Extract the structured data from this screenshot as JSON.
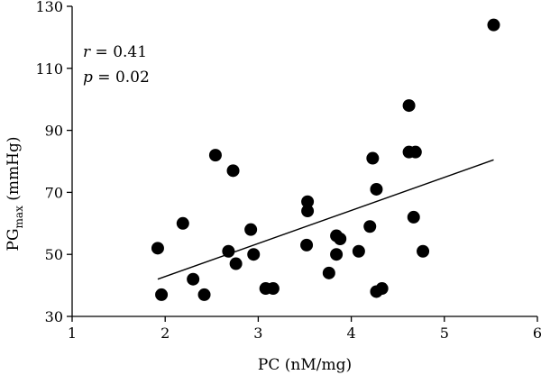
{
  "chart_data": {
    "type": "scatter",
    "xlabel": "PC (nM/mg)",
    "ylabel": {
      "main": "PG",
      "sub": "max",
      "unit": " (mmHg)"
    },
    "xlim": [
      1,
      6
    ],
    "ylim": [
      30,
      130
    ],
    "xticks": [
      1,
      2,
      3,
      4,
      5,
      6
    ],
    "yticks": [
      30,
      50,
      70,
      90,
      110,
      130
    ],
    "grid": false,
    "points": [
      {
        "x": 1.92,
        "y": 52
      },
      {
        "x": 1.96,
        "y": 37
      },
      {
        "x": 2.19,
        "y": 60
      },
      {
        "x": 2.3,
        "y": 42
      },
      {
        "x": 2.42,
        "y": 37
      },
      {
        "x": 2.54,
        "y": 82
      },
      {
        "x": 2.68,
        "y": 51
      },
      {
        "x": 2.73,
        "y": 77
      },
      {
        "x": 2.76,
        "y": 47
      },
      {
        "x": 2.92,
        "y": 58
      },
      {
        "x": 2.95,
        "y": 50
      },
      {
        "x": 3.08,
        "y": 39
      },
      {
        "x": 3.16,
        "y": 39
      },
      {
        "x": 3.53,
        "y": 67
      },
      {
        "x": 3.53,
        "y": 64
      },
      {
        "x": 3.52,
        "y": 53
      },
      {
        "x": 3.76,
        "y": 44
      },
      {
        "x": 3.84,
        "y": 56
      },
      {
        "x": 3.84,
        "y": 50
      },
      {
        "x": 3.88,
        "y": 55
      },
      {
        "x": 4.08,
        "y": 51
      },
      {
        "x": 4.2,
        "y": 59
      },
      {
        "x": 4.23,
        "y": 81
      },
      {
        "x": 4.27,
        "y": 71
      },
      {
        "x": 4.27,
        "y": 38
      },
      {
        "x": 4.33,
        "y": 39
      },
      {
        "x": 4.62,
        "y": 98
      },
      {
        "x": 4.62,
        "y": 83
      },
      {
        "x": 4.69,
        "y": 83
      },
      {
        "x": 4.67,
        "y": 62
      },
      {
        "x": 4.77,
        "y": 51
      },
      {
        "x": 5.53,
        "y": 124
      }
    ],
    "trendline": {
      "x": [
        1.92,
        5.53
      ],
      "y": [
        42,
        80.5
      ]
    },
    "annotations": {
      "r_label": "r",
      "r_value": " = 0.41",
      "p_label": "p",
      "p_value": " = 0.02"
    }
  }
}
